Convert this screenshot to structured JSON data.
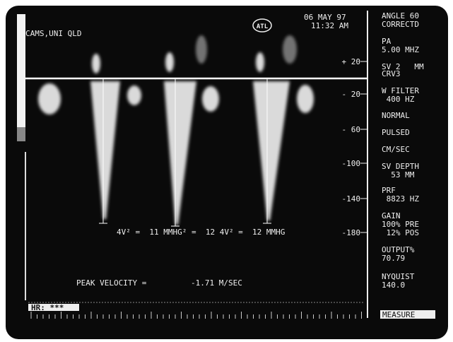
{
  "header": {
    "date": "06 MAY 97",
    "time": "11:32 AM",
    "site": "CAMS,UNI QLD",
    "logo": "ATL"
  },
  "scale": [
    "+ 20",
    "- 20",
    "- 60",
    "-100",
    "-140",
    "-180"
  ],
  "panel": [
    "ANGLE 60",
    "CORRECTD",
    "PA",
    "5.00 MHZ",
    "SV 2   MM",
    "CRV3",
    "W FILTER",
    " 400 HZ",
    "NORMAL",
    "PULSED",
    "CM/SEC",
    "SV DEPTH",
    "  53 MM",
    "PRF",
    " 8823 HZ",
    "GAIN",
    "100% PRE",
    " 12% POS",
    "OUTPUT%",
    "70.79",
    "NYQUIST",
    "140.0"
  ],
  "measure_button": "MEASURE",
  "measurement": "4V² =  11 MMHG² =  12 4V² =  12 MMHG",
  "peak": {
    "label": "PEAK VELOCITY =",
    "value": "-1.71 M/SEC"
  },
  "footer": {
    "hr": "HR: ***"
  }
}
